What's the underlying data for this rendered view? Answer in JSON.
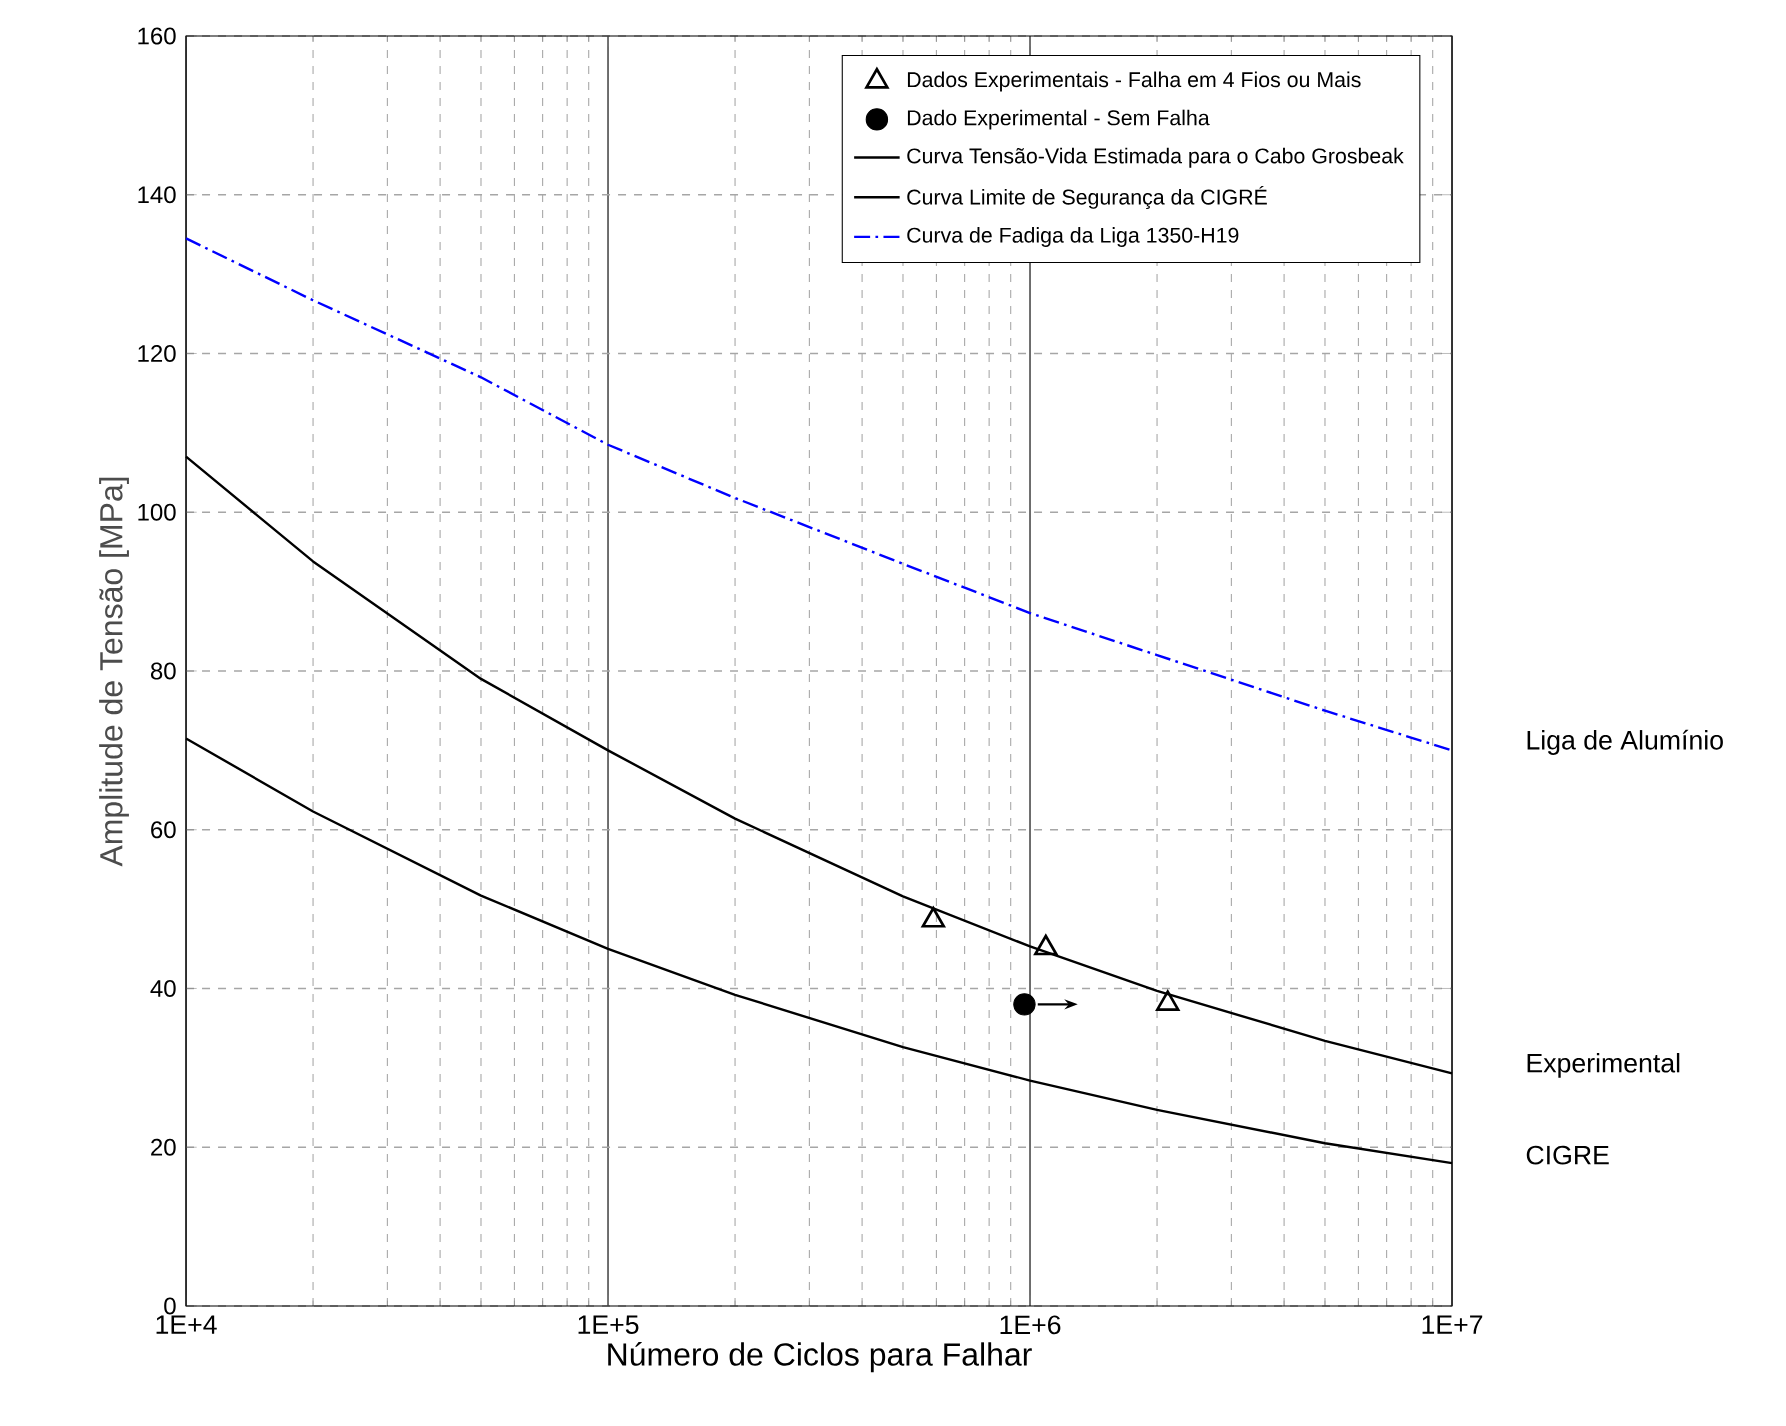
{
  "chart_data": {
    "type": "line",
    "xlabel": "Número de Ciclos para Falhar",
    "ylabel": "Amplitude de Tensão [MPa]",
    "log": "x",
    "xlim": [
      10000,
      10000000
    ],
    "ylim": [
      0,
      160
    ],
    "xticks": [
      {
        "value": 10000,
        "label": "1E+4"
      },
      {
        "value": 100000,
        "label": "1E+5"
      },
      {
        "value": 1000000,
        "label": "1E+6"
      },
      {
        "value": 10000000,
        "label": "1E+7"
      }
    ],
    "yticks": [
      0,
      20,
      40,
      60,
      80,
      100,
      120,
      140,
      160
    ],
    "grid": true,
    "legend": "top right",
    "series": [
      {
        "name": "Dados Experimentais - Falha em 4 Fios ou Mais",
        "type": "scatter",
        "marker": "triangle",
        "color": "#000000",
        "x": [
          590000,
          1090000,
          2120000
        ],
        "values": [
          48.6,
          45.1,
          38.1
        ]
      },
      {
        "name": "Dado Experimental - Sem Falha",
        "type": "scatter",
        "marker": "circle",
        "color": "#000000",
        "x": [
          970000
        ],
        "values": [
          38
        ]
      },
      {
        "name": "Curva Tensão-Vida Estimada para o Cabo Grosbeak",
        "line_style": "solid",
        "color": "#000000",
        "x": [
          10000,
          20000,
          50000,
          100000,
          200000,
          500000,
          1000000,
          2000000,
          5000000,
          10000000
        ],
        "values": [
          107,
          93.8,
          79,
          70,
          61.4,
          51.6,
          45.3,
          39.7,
          33.4,
          29.3
        ]
      },
      {
        "name": "Curva Limite de Segurança da CIGRÉ",
        "line_style": "solid",
        "color": "#000000",
        "x": [
          10000,
          20000,
          50000,
          100000,
          200000,
          500000,
          1000000,
          2000000,
          5000000,
          10000000
        ],
        "values": [
          71.5,
          62.3,
          51.7,
          45,
          39.2,
          32.6,
          28.4,
          24.7,
          20.5,
          18
        ]
      },
      {
        "name": "Curva de Fadiga da Liga 1350-H19",
        "line_style": "dashed",
        "color": "#0000ff",
        "x": [
          10000,
          20000,
          50000,
          100000,
          200000,
          500000,
          1000000,
          2000000,
          5000000,
          10000000
        ],
        "values": [
          134.5,
          126.7,
          117,
          108.5,
          101.8,
          93.5,
          87.3,
          82,
          75,
          70
        ]
      }
    ],
    "annotations": [
      "Experimental",
      "CIGRE",
      "Liga de Alumínio"
    ]
  }
}
